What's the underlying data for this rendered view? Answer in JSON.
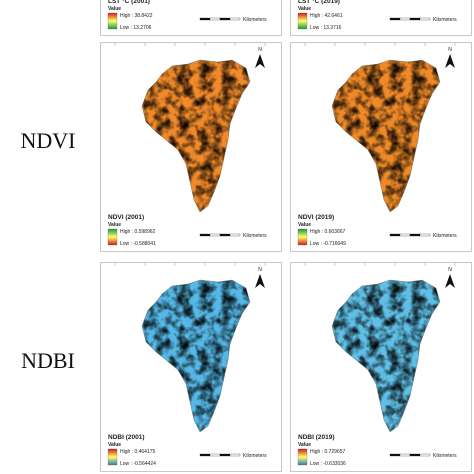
{
  "row_labels": [
    "NDVI",
    "NDBI"
  ],
  "north": "N",
  "scale_unit": "Kilometers",
  "panels": [
    {
      "title": "LST °C (2001)",
      "legend_title": "Value",
      "high": "High : 38.8422",
      "low": "Low : 13.2706"
    },
    {
      "title": "LST °C (2019)",
      "legend_title": "Value",
      "high": "High : 42.6461",
      "low": "Low : 13.3716"
    },
    {
      "title": "NDVI (2001)",
      "legend_title": "Value",
      "high": "High : 0.598962",
      "low": "Low : -0.588041"
    },
    {
      "title": "NDVI (2019)",
      "legend_title": "Value",
      "high": "High : 0.603667",
      "low": "Low : -0.716049"
    },
    {
      "title": "NDBI (2001)",
      "legend_title": "Value",
      "high": "High : 0.464175",
      "low": "Low : -0.564424"
    },
    {
      "title": "NDBI (2019)",
      "legend_title": "Value",
      "high": "High : 0.729657",
      "low": "Low : -0.633036"
    }
  ]
}
